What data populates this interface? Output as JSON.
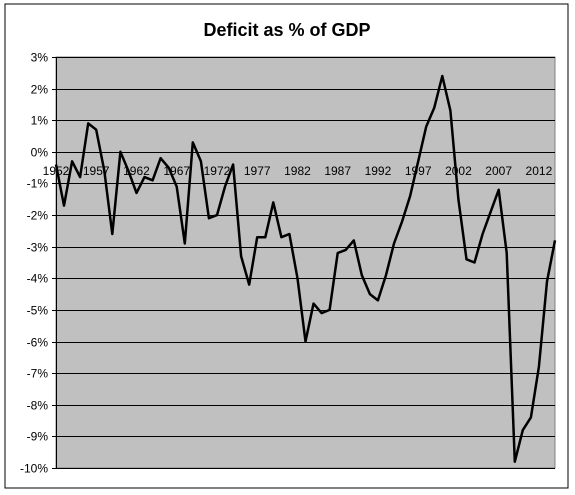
{
  "chart_data": {
    "type": "line",
    "title": "Deficit as % of GDP",
    "xlabel": "",
    "ylabel": "",
    "x_range": [
      1952,
      2014
    ],
    "ylim": [
      -10,
      3
    ],
    "y_tick_values": [
      3,
      2,
      1,
      0,
      -1,
      -2,
      -3,
      -4,
      -5,
      -6,
      -7,
      -8,
      -9,
      -10
    ],
    "y_tick_labels": [
      "3%",
      "2%",
      "1%",
      "0%",
      "-1%",
      "-2%",
      "-3%",
      "-4%",
      "-5%",
      "-6%",
      "-7%",
      "-8%",
      "-9%",
      "-10%"
    ],
    "x_tick_values": [
      1952,
      1957,
      1962,
      1967,
      1972,
      1977,
      1982,
      1987,
      1992,
      1997,
      2002,
      2007,
      2012
    ],
    "x_tick_labels": [
      "1952",
      "1957",
      "1962",
      "1967",
      "1972",
      "1977",
      "1982",
      "1987",
      "1992",
      "1997",
      "2002",
      "2007",
      "2012"
    ],
    "grid": "horizontal",
    "legend": "none",
    "series": [
      {
        "x": [
          1952,
          1953,
          1954,
          1955,
          1956,
          1957,
          1958,
          1959,
          1960,
          1961,
          1962,
          1963,
          1964,
          1965,
          1966,
          1967,
          1968,
          1969,
          1970,
          1971,
          1972,
          1973,
          1974,
          1975,
          1976,
          1977,
          1978,
          1979,
          1980,
          1981,
          1982,
          1983,
          1984,
          1985,
          1986,
          1987,
          1988,
          1989,
          1990,
          1991,
          1992,
          1993,
          1994,
          1995,
          1996,
          1997,
          1998,
          1999,
          2000,
          2001,
          2002,
          2003,
          2004,
          2005,
          2006,
          2007,
          2008,
          2009,
          2010,
          2011,
          2012,
          2013,
          2014
        ],
        "values": [
          -0.4,
          -1.7,
          -0.3,
          -0.8,
          0.9,
          0.7,
          -0.6,
          -2.6,
          0.0,
          -0.6,
          -1.3,
          -0.8,
          -0.9,
          -0.2,
          -0.5,
          -1.1,
          -2.9,
          0.3,
          -0.3,
          -2.1,
          -2.0,
          -1.1,
          -0.4,
          -3.3,
          -4.2,
          -2.7,
          -2.7,
          -1.6,
          -2.7,
          -2.6,
          -4.0,
          -6.0,
          -4.8,
          -5.1,
          -5.0,
          -3.2,
          -3.1,
          -2.8,
          -3.9,
          -4.5,
          -4.7,
          -3.9,
          -2.9,
          -2.2,
          -1.4,
          -0.3,
          0.8,
          1.4,
          2.4,
          1.3,
          -1.5,
          -3.4,
          -3.5,
          -2.6,
          -1.9,
          -1.2,
          -3.2,
          -9.8,
          -8.8,
          -8.4,
          -6.8,
          -4.1,
          -2.8
        ],
        "color": "#000000"
      }
    ],
    "plot_bg": "#c0c0c0",
    "grid_color": "#000000",
    "line_color": "#000000"
  }
}
